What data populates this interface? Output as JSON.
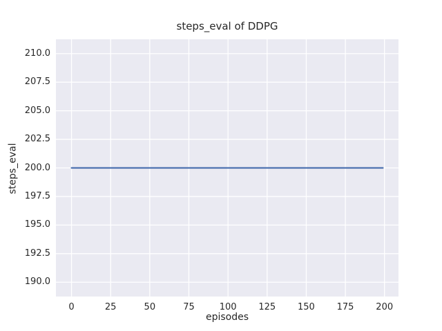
{
  "chart_data": {
    "type": "line",
    "title": "steps_eval of DDPG",
    "xlabel": "episodes",
    "ylabel": "steps_eval",
    "x_ticks": [
      0,
      25,
      50,
      75,
      100,
      125,
      150,
      175,
      200
    ],
    "x_tick_labels": [
      "0",
      "25",
      "50",
      "75",
      "100",
      "125",
      "150",
      "175",
      "200"
    ],
    "y_ticks": [
      210.0,
      207.5,
      205.0,
      202.5,
      200.0,
      197.5,
      195.0,
      192.5,
      190.0
    ],
    "y_tick_labels": [
      "210.0",
      "207.5",
      "205.0",
      "202.5",
      "200.0",
      "197.5",
      "195.0",
      "192.5",
      "190.0"
    ],
    "xlim": [
      -9.95,
      208.95
    ],
    "ylim": [
      188.75,
      211.25
    ],
    "grid": true,
    "legend_position": "none",
    "series": [
      {
        "name": "DDPG",
        "x": [
          0,
          199
        ],
        "values": [
          200,
          200
        ],
        "color": "#4C72B0"
      }
    ],
    "colors": {
      "figure_bg": "#ffffff",
      "axes_bg": "#EAEAF2",
      "grid": "#ffffff",
      "text": "#262626"
    }
  }
}
